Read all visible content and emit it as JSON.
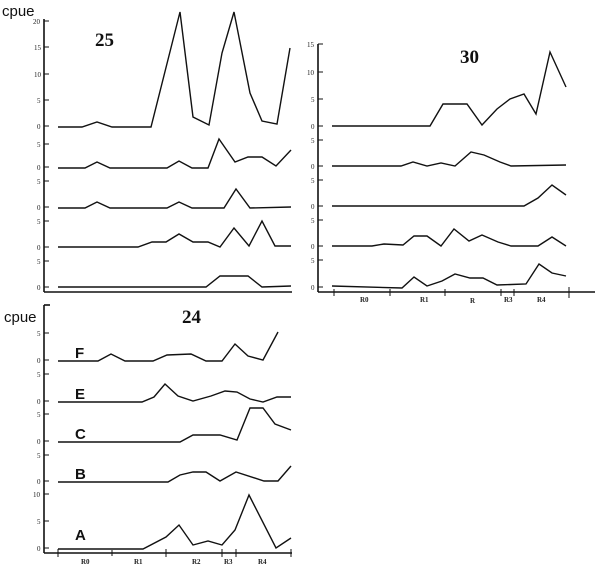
{
  "ylabel": "cpue",
  "chart_data": [
    {
      "type": "line",
      "title": "25",
      "ylabel": "cpue",
      "layout": "stacked line panels sharing an x-axis",
      "x_count": 16,
      "series": [
        {
          "name": "row1",
          "ylim": [
            0,
            20
          ],
          "yticks": [
            0,
            5,
            10,
            15,
            20
          ],
          "values": [
            0,
            0,
            1,
            0,
            0,
            0,
            10,
            21,
            2,
            0.5,
            12,
            21,
            6,
            1,
            0.5,
            14.5
          ]
        },
        {
          "name": "row2",
          "ylim": [
            0,
            5
          ],
          "yticks": [
            0,
            5
          ],
          "values": [
            0,
            0,
            1,
            0,
            0,
            0,
            0,
            1,
            0,
            0,
            5,
            1,
            2,
            2,
            0.5,
            3.5
          ]
        },
        {
          "name": "row3",
          "ylim": [
            0,
            5
          ],
          "yticks": [
            0,
            5
          ],
          "values": [
            0,
            0,
            1,
            0,
            0,
            0,
            0,
            1,
            0,
            0,
            0,
            3.5,
            0,
            0,
            0,
            0
          ]
        },
        {
          "name": "row4",
          "ylim": [
            0,
            5
          ],
          "yticks": [
            0,
            5
          ],
          "values": [
            0,
            0,
            0,
            0,
            0,
            0,
            1,
            1,
            2.5,
            1,
            1,
            0,
            3.5,
            0.5,
            5,
            0
          ]
        },
        {
          "name": "row5",
          "ylim": [
            0,
            5
          ],
          "yticks": [
            0,
            5
          ],
          "values": [
            0,
            0,
            0,
            0,
            0,
            0,
            0,
            0,
            0,
            0,
            0,
            2,
            2,
            2,
            0,
            0
          ]
        }
      ]
    },
    {
      "type": "line",
      "title": "30",
      "ylabel": "cpue",
      "layout": "stacked line panels sharing an x-axis",
      "xtick_labels": [
        "R0",
        "R1",
        "R",
        "R3",
        "R4"
      ],
      "series": [
        {
          "name": "row1",
          "ylim": [
            0,
            15
          ],
          "yticks": [
            0,
            5,
            10,
            15
          ],
          "values": [
            0,
            0,
            0,
            0,
            0,
            0,
            0,
            0,
            4,
            4,
            0,
            3,
            5,
            6,
            2,
            14,
            7
          ]
        },
        {
          "name": "row2",
          "ylim": [
            0,
            5
          ],
          "yticks": [
            0,
            5
          ],
          "values": [
            0,
            0,
            0,
            0,
            0,
            0,
            0.5,
            0,
            1,
            0,
            2.5,
            2,
            0.5,
            0,
            0,
            0,
            0
          ]
        },
        {
          "name": "row3",
          "ylim": [
            0,
            5
          ],
          "yticks": [
            0,
            5
          ],
          "values": [
            0,
            0,
            0,
            0,
            0,
            0,
            0,
            0,
            0,
            0,
            0,
            0,
            0,
            0,
            1.5,
            4,
            2.5
          ]
        },
        {
          "name": "row4",
          "ylim": [
            0,
            5
          ],
          "yticks": [
            0,
            5
          ],
          "values": [
            0,
            0,
            0,
            0.5,
            0.5,
            2,
            2,
            0,
            3.5,
            1,
            2,
            0.5,
            0,
            0,
            2,
            0
          ]
        },
        {
          "name": "row5",
          "ylim": [
            0,
            5
          ],
          "yticks": [
            0,
            5
          ],
          "values": [
            0,
            0,
            0,
            0,
            0,
            1.5,
            0,
            1,
            2,
            1,
            1,
            0,
            0,
            0,
            4,
            2,
            1.5
          ]
        }
      ]
    },
    {
      "type": "line",
      "title": "24",
      "ylabel": "cpue",
      "layout": "stacked line panels sharing an x-axis",
      "xtick_labels": [
        "R0",
        "R1",
        "R2",
        "R3",
        "R4"
      ],
      "series": [
        {
          "name": "F",
          "ylim": [
            0,
            5
          ],
          "yticks": [
            0,
            5
          ],
          "values": [
            0,
            0,
            1.5,
            0,
            0,
            0,
            1,
            1,
            1,
            0,
            0,
            3.5,
            1,
            0.5,
            5
          ]
        },
        {
          "name": "E",
          "ylim": [
            0,
            5
          ],
          "yticks": [
            0,
            5
          ],
          "values": [
            0,
            0,
            0,
            0,
            0,
            3.5,
            1,
            0.5,
            1,
            2,
            2,
            0.5,
            0,
            1,
            1
          ]
        },
        {
          "name": "C",
          "ylim": [
            0,
            5
          ],
          "yticks": [
            0,
            5
          ],
          "values": [
            0,
            0,
            0,
            0,
            0,
            0,
            0,
            0,
            1,
            1,
            1,
            0,
            7,
            7,
            3,
            2
          ]
        },
        {
          "name": "B",
          "ylim": [
            0,
            5
          ],
          "yticks": [
            0,
            5
          ],
          "values": [
            0,
            0,
            0,
            0,
            0,
            0,
            1,
            2,
            2,
            0,
            2,
            1,
            0,
            0,
            3
          ]
        },
        {
          "name": "A",
          "ylim": [
            0,
            10
          ],
          "yticks": [
            0,
            5,
            10
          ],
          "values": [
            0,
            0,
            0,
            0,
            0,
            0,
            2,
            4,
            1,
            1.5,
            1,
            3,
            10,
            5,
            0,
            2
          ]
        }
      ]
    }
  ],
  "panels": {
    "p25": {
      "title": "25",
      "ylabel": "cpue"
    },
    "p30": {
      "title": "30"
    },
    "p24": {
      "title": "24",
      "ylabel": "cpue",
      "series_labels": [
        "F",
        "E",
        "C",
        "B",
        "A"
      ],
      "xlabels": [
        "R0",
        "R1",
        "R2",
        "R3",
        "R4"
      ]
    },
    "p30_xlabels": [
      "R0",
      "R1",
      "R",
      "R3",
      "R4"
    ]
  },
  "tick_labels": {
    "t0": "0",
    "t5": "5",
    "t10": "10",
    "t15": "15",
    "t20": "20"
  },
  "geometry": {
    "p25": [
      "58,127 82,127 97,122 112,127 151,127 180,12 193,117 209,125 222,53 234,12 250,93 262,121 277,124 290,48",
      "58,168 85,168 97,162 110,168 167,168 179,161 192,168 208,168 219,139 235,162 248,157 262,157 276,166 291,150",
      "58,208 85,208 97,202 110,208 167,208 179,202 192,208 224,208 236,189 250,208 291,207",
      "58,247 138,247 152,242 166,242 179,234 193,242 208,242 220,247 234,228 249,246 262,221 275,246 291,246",
      "58,287 206,287 220,276 248,276 262,287 291,286"
    ],
    "p30": [
      "332,126 430,126 443,104 467,104 482,125 497,109 510,99 524,94 536,114 550,52 566,87",
      "332,166 401,166 413,162 427,166 441,163 455,166 471,152 484,155 500,162 511,166 566,165",
      "332,206 524,206 538,198 552,185 566,195",
      "332,246 372,246 384,244 403,245 414,236 427,236 441,246 454,229 469,241 482,235 498,242 511,246 538,246 552,237 566,246",
      "332,286 402,288 414,277 427,286 442,281 455,274 470,278 483,278 497,285 526,284 539,264 552,273 566,276"
    ],
    "p24": [
      "58,361 98,361 111,354 125,361 153,361 167,355 191,354 206,361 222,361 235,344 248,356 263,360 278,332",
      "58,402 142,402 154,397 165,384 178,396 193,401 211,396 225,391 237,392 250,399 263,402 277,397 291,397",
      "58,442 180,442 193,435 220,435 237,440 250,408 263,408 275,424 291,430",
      "58,482 168,482 180,475 193,472 206,472 220,481 236,472 264,481 278,481 291,466",
      "58,549 143,549 166,537 179,525 193,545 208,541 222,545 235,530 249,495 276,548 291,538"
    ]
  }
}
